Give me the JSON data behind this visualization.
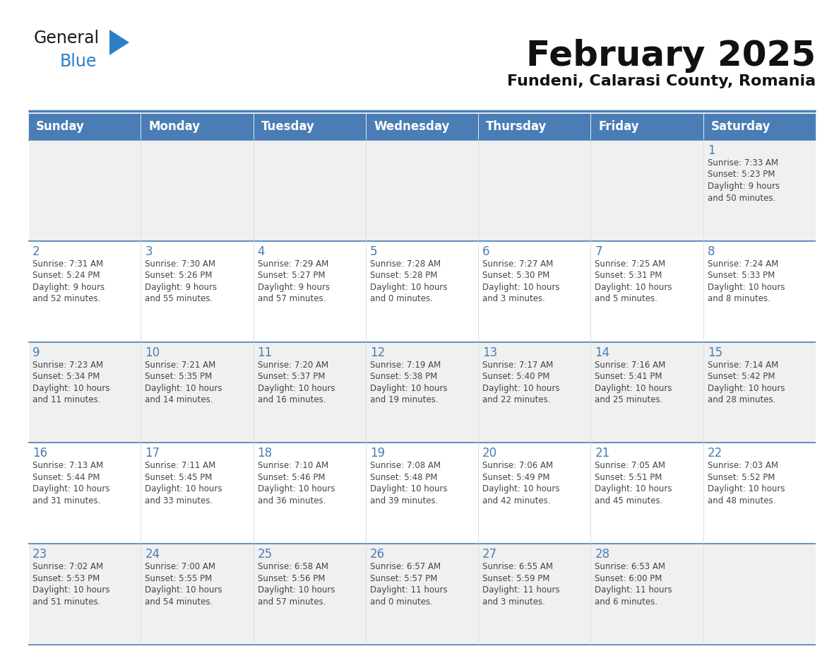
{
  "title": "February 2025",
  "subtitle": "Fundeni, Calarasi County, Romania",
  "header_color": "#4a7db5",
  "header_text_color": "#ffffff",
  "cell_bg_odd": "#f0f0f0",
  "cell_bg_even": "#ffffff",
  "day_number_color": "#4a7db5",
  "text_color": "#444444",
  "border_color": "#4a7db5",
  "days_of_week": [
    "Sunday",
    "Monday",
    "Tuesday",
    "Wednesday",
    "Thursday",
    "Friday",
    "Saturday"
  ],
  "calendar_data": [
    [
      null,
      null,
      null,
      null,
      null,
      null,
      {
        "day": "1",
        "sunrise": "7:33 AM",
        "sunset": "5:23 PM",
        "daylight": "9 hours\nand 50 minutes."
      }
    ],
    [
      {
        "day": "2",
        "sunrise": "7:31 AM",
        "sunset": "5:24 PM",
        "daylight": "9 hours\nand 52 minutes."
      },
      {
        "day": "3",
        "sunrise": "7:30 AM",
        "sunset": "5:26 PM",
        "daylight": "9 hours\nand 55 minutes."
      },
      {
        "day": "4",
        "sunrise": "7:29 AM",
        "sunset": "5:27 PM",
        "daylight": "9 hours\nand 57 minutes."
      },
      {
        "day": "5",
        "sunrise": "7:28 AM",
        "sunset": "5:28 PM",
        "daylight": "10 hours\nand 0 minutes."
      },
      {
        "day": "6",
        "sunrise": "7:27 AM",
        "sunset": "5:30 PM",
        "daylight": "10 hours\nand 3 minutes."
      },
      {
        "day": "7",
        "sunrise": "7:25 AM",
        "sunset": "5:31 PM",
        "daylight": "10 hours\nand 5 minutes."
      },
      {
        "day": "8",
        "sunrise": "7:24 AM",
        "sunset": "5:33 PM",
        "daylight": "10 hours\nand 8 minutes."
      }
    ],
    [
      {
        "day": "9",
        "sunrise": "7:23 AM",
        "sunset": "5:34 PM",
        "daylight": "10 hours\nand 11 minutes."
      },
      {
        "day": "10",
        "sunrise": "7:21 AM",
        "sunset": "5:35 PM",
        "daylight": "10 hours\nand 14 minutes."
      },
      {
        "day": "11",
        "sunrise": "7:20 AM",
        "sunset": "5:37 PM",
        "daylight": "10 hours\nand 16 minutes."
      },
      {
        "day": "12",
        "sunrise": "7:19 AM",
        "sunset": "5:38 PM",
        "daylight": "10 hours\nand 19 minutes."
      },
      {
        "day": "13",
        "sunrise": "7:17 AM",
        "sunset": "5:40 PM",
        "daylight": "10 hours\nand 22 minutes."
      },
      {
        "day": "14",
        "sunrise": "7:16 AM",
        "sunset": "5:41 PM",
        "daylight": "10 hours\nand 25 minutes."
      },
      {
        "day": "15",
        "sunrise": "7:14 AM",
        "sunset": "5:42 PM",
        "daylight": "10 hours\nand 28 minutes."
      }
    ],
    [
      {
        "day": "16",
        "sunrise": "7:13 AM",
        "sunset": "5:44 PM",
        "daylight": "10 hours\nand 31 minutes."
      },
      {
        "day": "17",
        "sunrise": "7:11 AM",
        "sunset": "5:45 PM",
        "daylight": "10 hours\nand 33 minutes."
      },
      {
        "day": "18",
        "sunrise": "7:10 AM",
        "sunset": "5:46 PM",
        "daylight": "10 hours\nand 36 minutes."
      },
      {
        "day": "19",
        "sunrise": "7:08 AM",
        "sunset": "5:48 PM",
        "daylight": "10 hours\nand 39 minutes."
      },
      {
        "day": "20",
        "sunrise": "7:06 AM",
        "sunset": "5:49 PM",
        "daylight": "10 hours\nand 42 minutes."
      },
      {
        "day": "21",
        "sunrise": "7:05 AM",
        "sunset": "5:51 PM",
        "daylight": "10 hours\nand 45 minutes."
      },
      {
        "day": "22",
        "sunrise": "7:03 AM",
        "sunset": "5:52 PM",
        "daylight": "10 hours\nand 48 minutes."
      }
    ],
    [
      {
        "day": "23",
        "sunrise": "7:02 AM",
        "sunset": "5:53 PM",
        "daylight": "10 hours\nand 51 minutes."
      },
      {
        "day": "24",
        "sunrise": "7:00 AM",
        "sunset": "5:55 PM",
        "daylight": "10 hours\nand 54 minutes."
      },
      {
        "day": "25",
        "sunrise": "6:58 AM",
        "sunset": "5:56 PM",
        "daylight": "10 hours\nand 57 minutes."
      },
      {
        "day": "26",
        "sunrise": "6:57 AM",
        "sunset": "5:57 PM",
        "daylight": "11 hours\nand 0 minutes."
      },
      {
        "day": "27",
        "sunrise": "6:55 AM",
        "sunset": "5:59 PM",
        "daylight": "11 hours\nand 3 minutes."
      },
      {
        "day": "28",
        "sunrise": "6:53 AM",
        "sunset": "6:00 PM",
        "daylight": "11 hours\nand 6 minutes."
      },
      null
    ]
  ],
  "logo_general_color": "#1a1a1a",
  "logo_blue_color": "#2a7fc7",
  "logo_triangle_color": "#2a7fc7"
}
